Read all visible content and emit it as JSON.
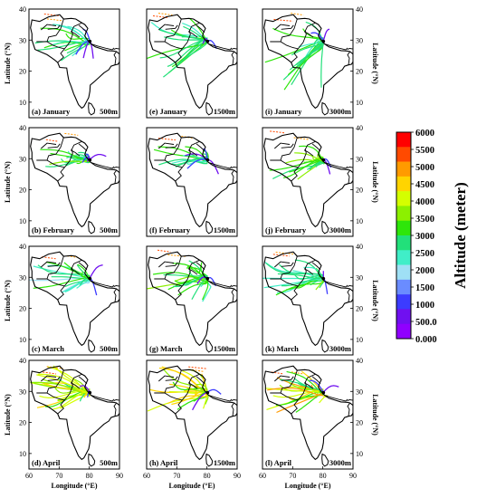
{
  "figure": {
    "left_axis_label": "Latitude (°N)",
    "right_axis_label": "Latitude (°N)",
    "bottom_axis_label": "Longitude (°E)",
    "lat_ticks": [
      "10",
      "20",
      "30",
      "40"
    ],
    "lon_ticks": [
      "60",
      "70",
      "80",
      "90"
    ],
    "colorbar": {
      "title": "Altitude (meter)",
      "labels": [
        "6000",
        "5500",
        "5000",
        "4500",
        "4000",
        "3500",
        "3000",
        "2500",
        "2000",
        "1500",
        "1000",
        "500.0",
        "0.000"
      ],
      "colors": [
        "#ff0000",
        "#ff4a00",
        "#ff9a00",
        "#ffd400",
        "#d4ff00",
        "#8cf000",
        "#2ee60a",
        "#22e07a",
        "#40eec8",
        "#9fe0f5",
        "#6a8cff",
        "#3c3cff",
        "#7010f0",
        "#9000ff"
      ]
    },
    "panels": [
      {
        "label": "(a) January",
        "height": "500m",
        "month": "January"
      },
      {
        "label": "(e) January",
        "height": "1500m",
        "month": "January"
      },
      {
        "label": "(i) January",
        "height": "3000m",
        "month": "January"
      },
      {
        "label": "(b) February",
        "height": "500m",
        "month": "February"
      },
      {
        "label": "(f) February",
        "height": "1500m",
        "month": "February"
      },
      {
        "label": "(j) February",
        "height": "3000m",
        "month": "February"
      },
      {
        "label": "(c) March",
        "height": "500m",
        "month": "March"
      },
      {
        "label": "(g) March",
        "height": "1500m",
        "month": "March"
      },
      {
        "label": "(k) March",
        "height": "3000m",
        "month": "March"
      },
      {
        "label": "(d) April",
        "height": "500m",
        "month": "April"
      },
      {
        "label": "(h) April",
        "height": "1500m",
        "month": "April"
      },
      {
        "label": "(l) April",
        "height": "3000m",
        "month": "April"
      }
    ]
  }
}
